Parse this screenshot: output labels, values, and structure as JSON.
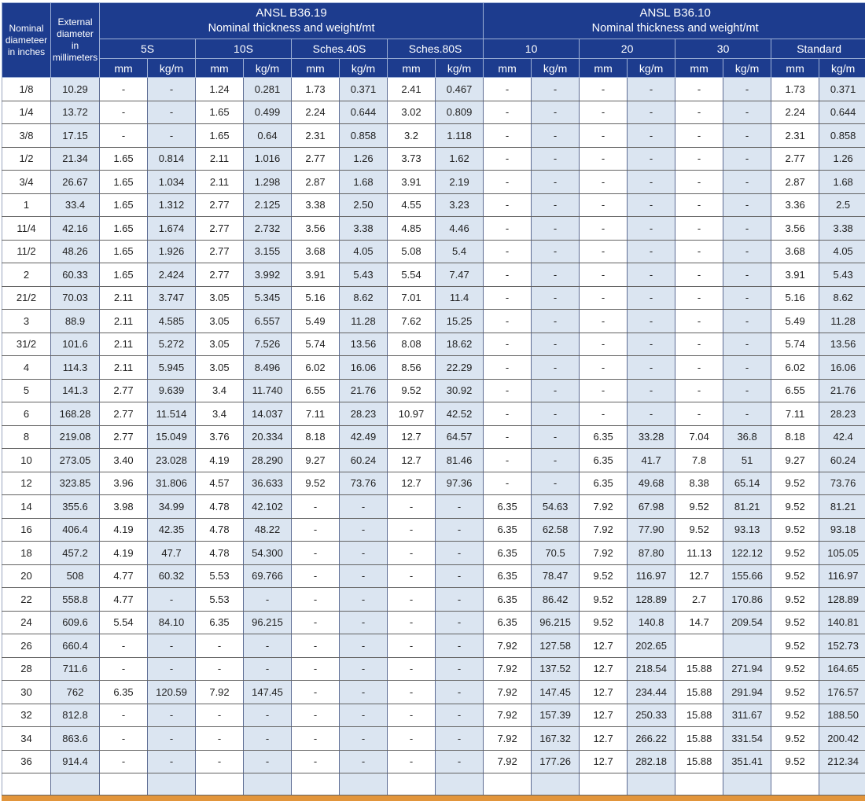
{
  "colors": {
    "header_bg": "#1d3c8e",
    "cell_alt": "#dbe5f1",
    "orange_bar": "#e2953b",
    "grid_h": "#636363",
    "grid_v": "#5d6c93"
  },
  "header": {
    "col_nominal": "Nominal diameteer in inches",
    "col_external": "External diameter in millimeters",
    "groups": [
      {
        "title": "ANSL B36.19",
        "subtitle": "Nominal thickness and weight/mt",
        "schedules": [
          "5S",
          "10S",
          "Sches.40S",
          "Sches.80S"
        ]
      },
      {
        "title": "ANSL B36.10",
        "subtitle": "Nominal thickness and weight/mt",
        "schedules": [
          "10",
          "20",
          "30",
          "Standard"
        ]
      }
    ],
    "unit_mm": "mm",
    "unit_kg": "kg/m"
  },
  "rows": [
    {
      "nominal": "1/8",
      "external": "10.29",
      "values": [
        "-",
        "-",
        "1.24",
        "0.281",
        "1.73",
        "0.371",
        "2.41",
        "0.467",
        "-",
        "-",
        "-",
        "-",
        "-",
        "-",
        "1.73",
        "0.371"
      ]
    },
    {
      "nominal": "1/4",
      "external": "13.72",
      "values": [
        "-",
        "-",
        "1.65",
        "0.499",
        "2.24",
        "0.644",
        "3.02",
        "0.809",
        "-",
        "-",
        "-",
        "-",
        "-",
        "-",
        "2.24",
        "0.644"
      ]
    },
    {
      "nominal": "3/8",
      "external": "17.15",
      "values": [
        "-",
        "-",
        "1.65",
        "0.64",
        "2.31",
        "0.858",
        "3.2",
        "1.118",
        "-",
        "-",
        "-",
        "-",
        "-",
        "-",
        "2.31",
        "0.858"
      ]
    },
    {
      "nominal": "1/2",
      "external": "21.34",
      "values": [
        "1.65",
        "0.814",
        "2.11",
        "1.016",
        "2.77",
        "1.26",
        "3.73",
        "1.62",
        "-",
        "-",
        "-",
        "-",
        "-",
        "-",
        "2.77",
        "1.26"
      ]
    },
    {
      "nominal": "3/4",
      "external": "26.67",
      "values": [
        "1.65",
        "1.034",
        "2.11",
        "1.298",
        "2.87",
        "1.68",
        "3.91",
        "2.19",
        "-",
        "-",
        "-",
        "-",
        "-",
        "-",
        "2.87",
        "1.68"
      ]
    },
    {
      "nominal": "1",
      "external": "33.4",
      "values": [
        "1.65",
        "1.312",
        "2.77",
        "2.125",
        "3.38",
        "2.50",
        "4.55",
        "3.23",
        "-",
        "-",
        "-",
        "-",
        "-",
        "-",
        "3.36",
        "2.5"
      ]
    },
    {
      "nominal": "11/4",
      "external": "42.16",
      "values": [
        "1.65",
        "1.674",
        "2.77",
        "2.732",
        "3.56",
        "3.38",
        "4.85",
        "4.46",
        "-",
        "-",
        "-",
        "-",
        "-",
        "-",
        "3.56",
        "3.38"
      ]
    },
    {
      "nominal": "11/2",
      "external": "48.26",
      "values": [
        "1.65",
        "1.926",
        "2.77",
        "3.155",
        "3.68",
        "4.05",
        "5.08",
        "5.4",
        "-",
        "-",
        "-",
        "-",
        "-",
        "-",
        "3.68",
        "4.05"
      ]
    },
    {
      "nominal": "2",
      "external": "60.33",
      "values": [
        "1.65",
        "2.424",
        "2.77",
        "3.992",
        "3.91",
        "5.43",
        "5.54",
        "7.47",
        "-",
        "-",
        "-",
        "-",
        "-",
        "-",
        "3.91",
        "5.43"
      ]
    },
    {
      "nominal": "21/2",
      "external": "70.03",
      "values": [
        "2.11",
        "3.747",
        "3.05",
        "5.345",
        "5.16",
        "8.62",
        "7.01",
        "11.4",
        "-",
        "-",
        "-",
        "-",
        "-",
        "-",
        "5.16",
        "8.62"
      ]
    },
    {
      "nominal": "3",
      "external": "88.9",
      "values": [
        "2.11",
        "4.585",
        "3.05",
        "6.557",
        "5.49",
        "11.28",
        "7.62",
        "15.25",
        "-",
        "-",
        "-",
        "-",
        "-",
        "-",
        "5.49",
        "11.28"
      ]
    },
    {
      "nominal": "31/2",
      "external": "101.6",
      "values": [
        "2.11",
        "5.272",
        "3.05",
        "7.526",
        "5.74",
        "13.56",
        "8.08",
        "18.62",
        "-",
        "-",
        "-",
        "-",
        "-",
        "-",
        "5.74",
        "13.56"
      ]
    },
    {
      "nominal": "4",
      "external": "114.3",
      "values": [
        "2.11",
        "5.945",
        "3.05",
        "8.496",
        "6.02",
        "16.06",
        "8.56",
        "22.29",
        "-",
        "-",
        "-",
        "-",
        "-",
        "-",
        "6.02",
        "16.06"
      ]
    },
    {
      "nominal": "5",
      "external": "141.3",
      "values": [
        "2.77",
        "9.639",
        "3.4",
        "11.740",
        "6.55",
        "21.76",
        "9.52",
        "30.92",
        "-",
        "-",
        "-",
        "-",
        "-",
        "-",
        "6.55",
        "21.76"
      ]
    },
    {
      "nominal": "6",
      "external": "168.28",
      "values": [
        "2.77",
        "11.514",
        "3.4",
        "14.037",
        "7.11",
        "28.23",
        "10.97",
        "42.52",
        "-",
        "-",
        "-",
        "-",
        "-",
        "-",
        "7.11",
        "28.23"
      ]
    },
    {
      "nominal": "8",
      "external": "219.08",
      "values": [
        "2.77",
        "15.049",
        "3.76",
        "20.334",
        "8.18",
        "42.49",
        "12.7",
        "64.57",
        "-",
        "-",
        "6.35",
        "33.28",
        "7.04",
        "36.8",
        "8.18",
        "42.4"
      ]
    },
    {
      "nominal": "10",
      "external": "273.05",
      "values": [
        "3.40",
        "23.028",
        "4.19",
        "28.290",
        "9.27",
        "60.24",
        "12.7",
        "81.46",
        "-",
        "-",
        "6.35",
        "41.7",
        "7.8",
        "51",
        "9.27",
        "60.24"
      ]
    },
    {
      "nominal": "12",
      "external": "323.85",
      "values": [
        "3.96",
        "31.806",
        "4.57",
        "36.633",
        "9.52",
        "73.76",
        "12.7",
        "97.36",
        "-",
        "-",
        "6.35",
        "49.68",
        "8.38",
        "65.14",
        "9.52",
        "73.76"
      ]
    },
    {
      "nominal": "14",
      "external": "355.6",
      "values": [
        "3.98",
        "34.99",
        "4.78",
        "42.102",
        "-",
        "-",
        "-",
        "-",
        "6.35",
        "54.63",
        "7.92",
        "67.98",
        "9.52",
        "81.21",
        "9.52",
        "81.21"
      ]
    },
    {
      "nominal": "16",
      "external": "406.4",
      "values": [
        "4.19",
        "42.35",
        "4.78",
        "48.22",
        "-",
        "-",
        "-",
        "-",
        "6.35",
        "62.58",
        "7.92",
        "77.90",
        "9.52",
        "93.13",
        "9.52",
        "93.18"
      ]
    },
    {
      "nominal": "18",
      "external": "457.2",
      "values": [
        "4.19",
        "47.7",
        "4.78",
        "54.300",
        "-",
        "-",
        "-",
        "-",
        "6.35",
        "70.5",
        "7.92",
        "87.80",
        "11.13",
        "122.12",
        "9.52",
        "105.05"
      ]
    },
    {
      "nominal": "20",
      "external": "508",
      "values": [
        "4.77",
        "60.32",
        "5.53",
        "69.766",
        "-",
        "-",
        "-",
        "-",
        "6.35",
        "78.47",
        "9.52",
        "116.97",
        "12.7",
        "155.66",
        "9.52",
        "116.97"
      ]
    },
    {
      "nominal": "22",
      "external": "558.8",
      "values": [
        "4.77",
        "-",
        "5.53",
        "-",
        "-",
        "-",
        "-",
        "-",
        "6.35",
        "86.42",
        "9.52",
        "128.89",
        "2.7",
        "170.86",
        "9.52",
        "128.89"
      ]
    },
    {
      "nominal": "24",
      "external": "609.6",
      "values": [
        "5.54",
        "84.10",
        "6.35",
        "96.215",
        "-",
        "-",
        "-",
        "-",
        "6.35",
        "96.215",
        "9.52",
        "140.8",
        "14.7",
        "209.54",
        "9.52",
        "140.81"
      ]
    },
    {
      "nominal": "26",
      "external": "660.4",
      "values": [
        "-",
        "-",
        "-",
        "-",
        "-",
        "-",
        "-",
        "-",
        "7.92",
        "127.58",
        "12.7",
        "202.65",
        "",
        "",
        "9.52",
        "152.73"
      ]
    },
    {
      "nominal": "28",
      "external": "711.6",
      "values": [
        "-",
        "-",
        "-",
        "-",
        "-",
        "-",
        "-",
        "-",
        "7.92",
        "137.52",
        "12.7",
        "218.54",
        "15.88",
        "271.94",
        "9.52",
        "164.65"
      ]
    },
    {
      "nominal": "30",
      "external": "762",
      "values": [
        "6.35",
        "120.59",
        "7.92",
        "147.45",
        "-",
        "-",
        "-",
        "-",
        "7.92",
        "147.45",
        "12.7",
        "234.44",
        "15.88",
        "291.94",
        "9.52",
        "176.57"
      ]
    },
    {
      "nominal": "32",
      "external": "812.8",
      "values": [
        "-",
        "-",
        "-",
        "-",
        "-",
        "-",
        "-",
        "-",
        "7.92",
        "157.39",
        "12.7",
        "250.33",
        "15.88",
        "311.67",
        "9.52",
        "188.50"
      ]
    },
    {
      "nominal": "34",
      "external": "863.6",
      "values": [
        "-",
        "-",
        "-",
        "-",
        "-",
        "-",
        "-",
        "-",
        "7.92",
        "167.32",
        "12.7",
        "266.22",
        "15.88",
        "331.54",
        "9.52",
        "200.42"
      ]
    },
    {
      "nominal": "36",
      "external": "914.4",
      "values": [
        "-",
        "-",
        "-",
        "-",
        "-",
        "-",
        "-",
        "-",
        "7.92",
        "177.26",
        "12.7",
        "282.18",
        "15.88",
        "351.41",
        "9.52",
        "212.34"
      ]
    },
    {
      "nominal": "",
      "external": "",
      "values": [
        "",
        "",
        "",
        "",
        "",
        "",
        "",
        "",
        "",
        "",
        "",
        "",
        "",
        "",
        "",
        ""
      ]
    }
  ]
}
